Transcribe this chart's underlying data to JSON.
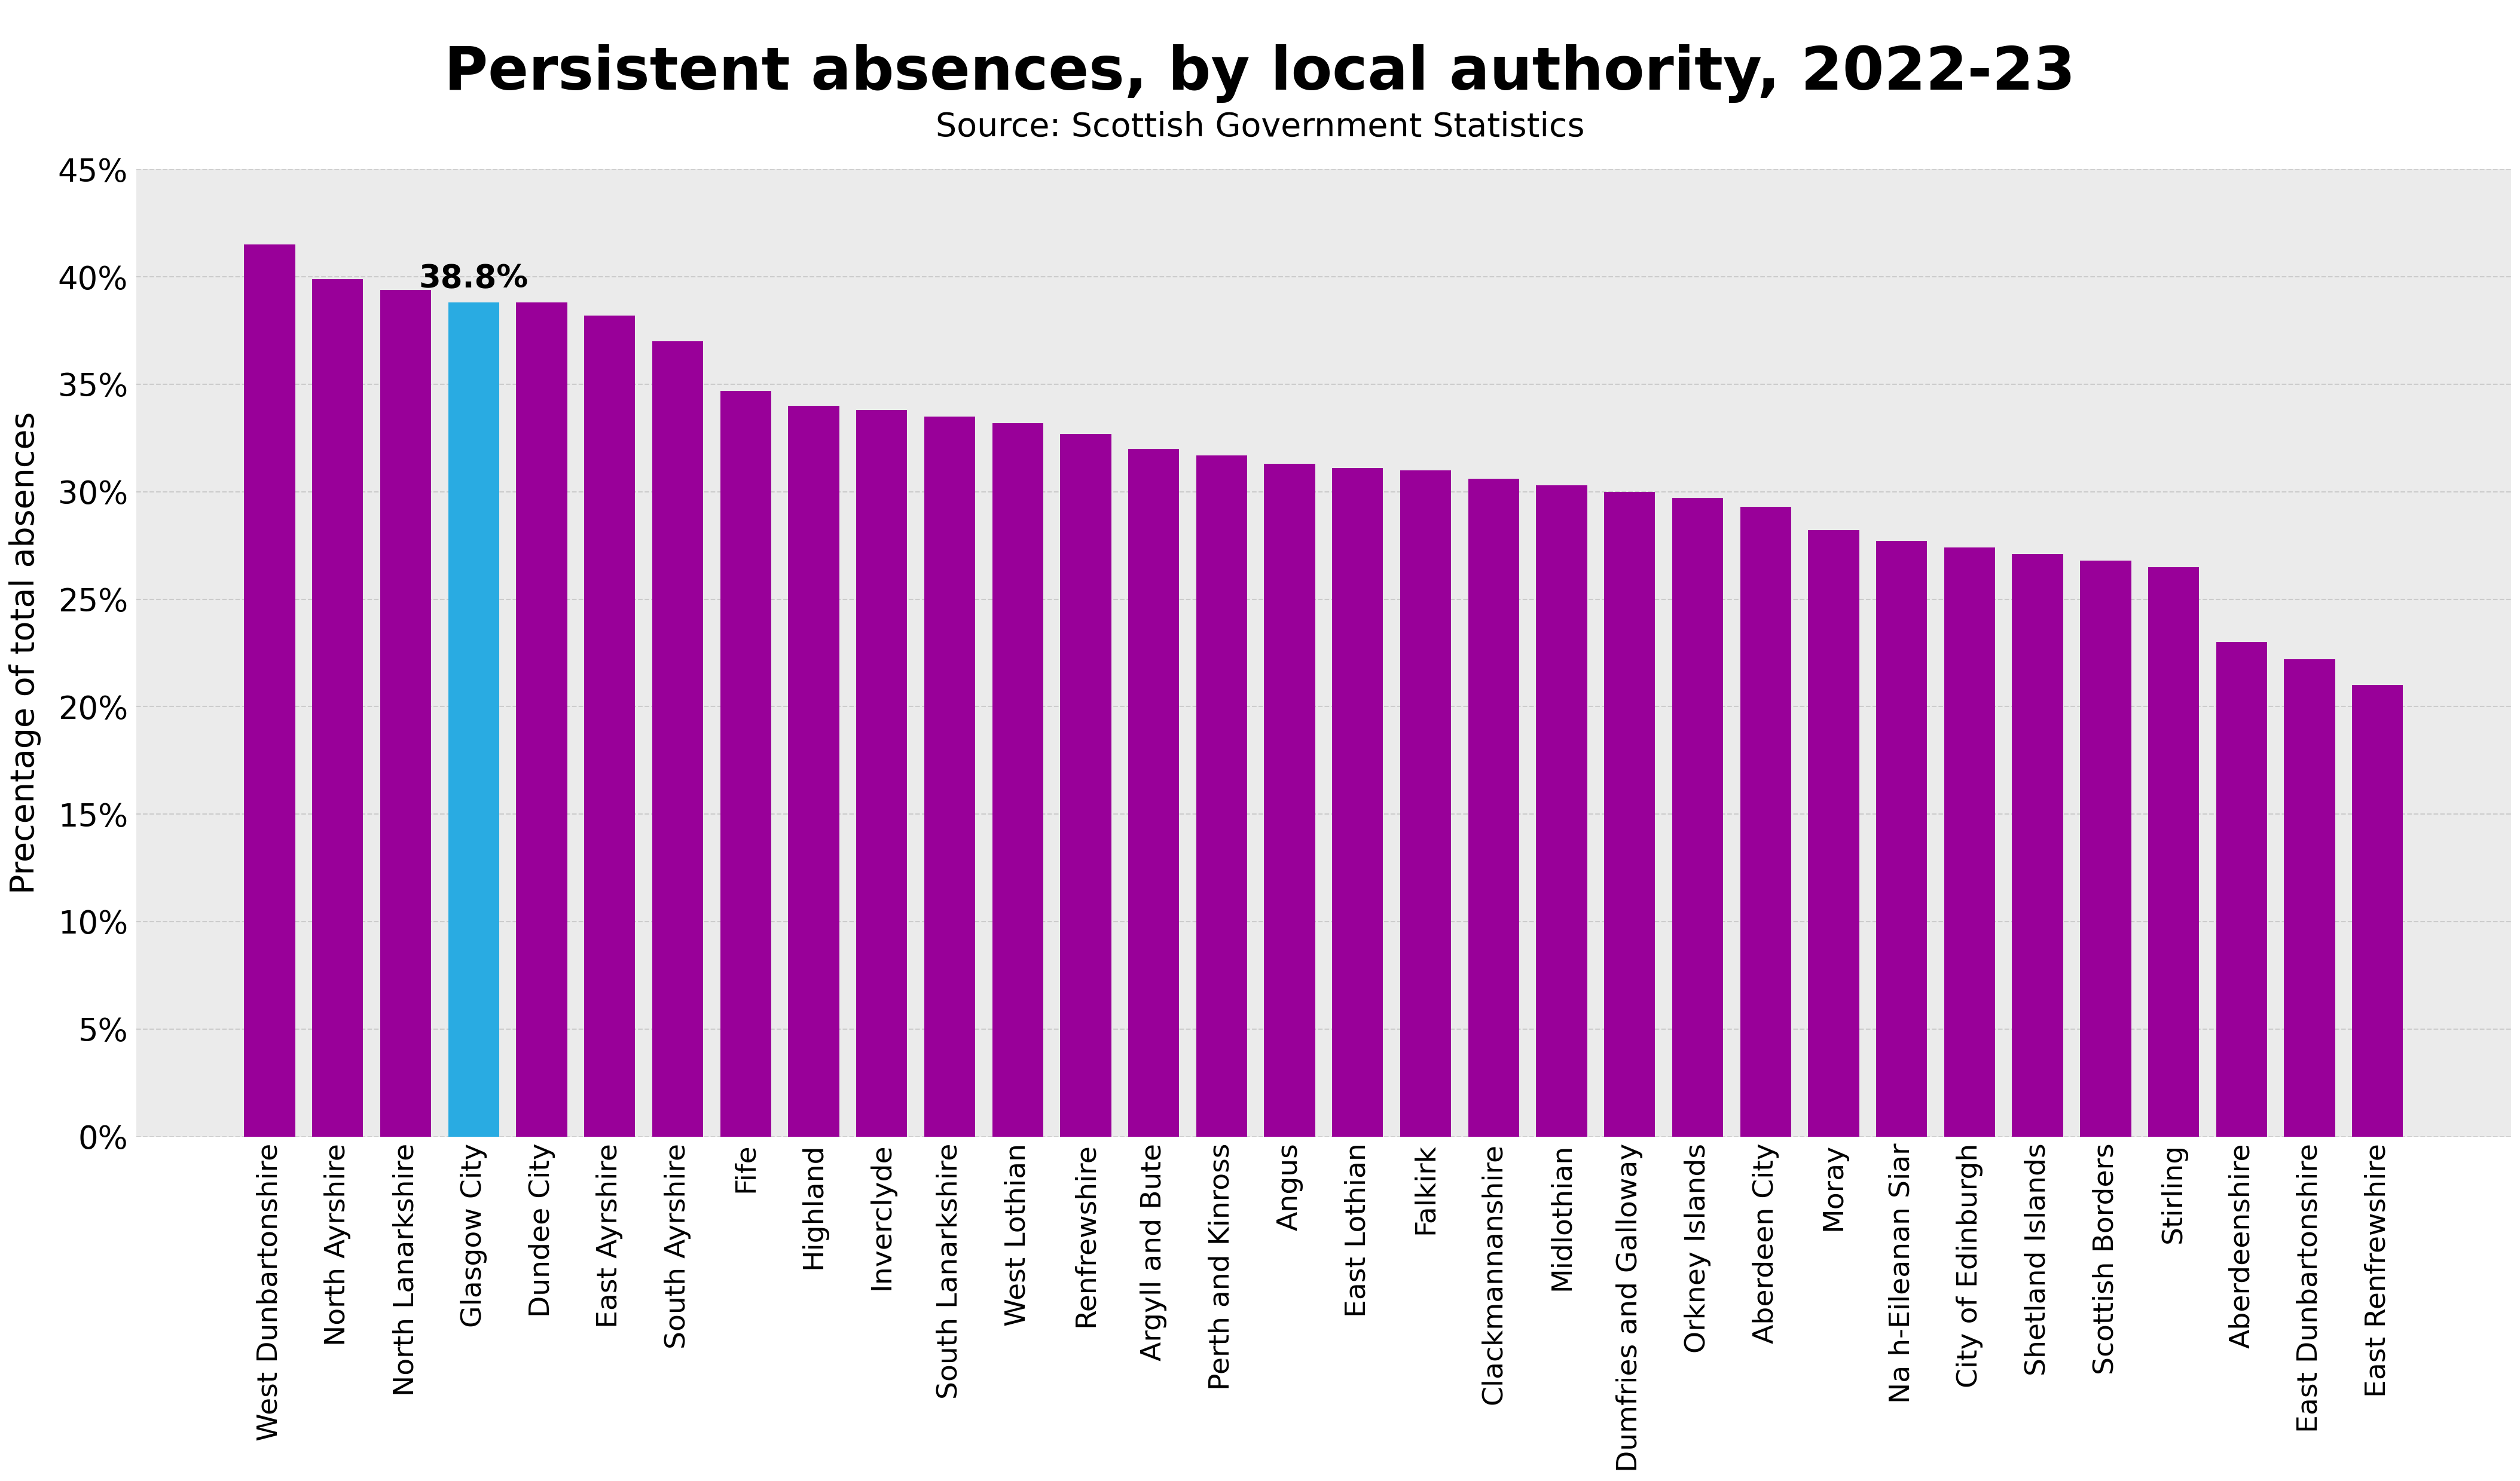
{
  "title": "Persistent absences, by local authority, 2022-23",
  "subtitle": "Source: Scottish Government Statistics",
  "ylabel": "Precentage of total absences",
  "categories": [
    "West Dunbartonshire",
    "North Ayrshire",
    "North Lanarkshire",
    "Glasgow City",
    "Dundee City",
    "East Ayrshire",
    "South Ayrshire",
    "Fife",
    "Highland",
    "Inverclyde",
    "South Lanarkshire",
    "West Lothian",
    "Renfrewshire",
    "Argyll and Bute",
    "Perth and Kinross",
    "Angus",
    "East Lothian",
    "Falkirk",
    "Clackmannanshire",
    "Midlothian",
    "Dumfries and Galloway",
    "Orkney Islands",
    "Aberdeen City",
    "Moray",
    "Na h-Eileanan Siar",
    "City of Edinburgh",
    "Shetland Islands",
    "Scottish Borders",
    "Stirling",
    "Aberdeenshire",
    "East Dunbartonshire",
    "East Renfrewshire"
  ],
  "values": [
    41.5,
    39.9,
    39.4,
    38.8,
    38.8,
    38.2,
    37.0,
    34.7,
    34.0,
    33.8,
    33.5,
    33.2,
    32.7,
    32.0,
    31.7,
    31.3,
    31.1,
    31.0,
    30.6,
    30.3,
    30.0,
    29.7,
    29.3,
    28.2,
    27.7,
    27.4,
    27.1,
    26.8,
    26.5,
    23.0,
    22.2,
    21.0
  ],
  "bar_colors_default": "#990099",
  "bar_color_highlight": "#29ABE2",
  "highlight_index": 3,
  "highlight_label": "38.8%",
  "ylim": [
    0,
    45
  ],
  "ytick_values": [
    0,
    5,
    10,
    15,
    20,
    25,
    30,
    35,
    40,
    45
  ],
  "background_color": "#ebebeb",
  "fig_background_color": "#ffffff",
  "title_fontsize": 72,
  "subtitle_fontsize": 40,
  "ylabel_fontsize": 40,
  "ytick_fontsize": 38,
  "xtick_fontsize": 34,
  "annotation_fontsize": 38
}
